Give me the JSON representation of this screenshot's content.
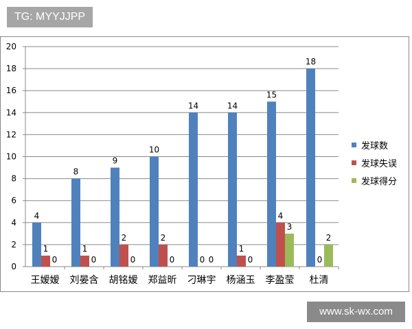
{
  "tag": "TG: MYYJJPP",
  "watermark": "www.sk-wx.com",
  "chart_data": {
    "type": "bar",
    "title": "",
    "categories": [
      "王嫒嫒",
      "刘晏含",
      "胡铭嫒",
      "郑益昕",
      "刁琳宇",
      "杨涵玉",
      "李盈莹",
      "杜清"
    ],
    "series": [
      {
        "name": "发球数",
        "color": "#4f81bd",
        "values": [
          4,
          8,
          9,
          10,
          14,
          14,
          15,
          18
        ]
      },
      {
        "name": "发球失误",
        "color": "#c0504d",
        "values": [
          1,
          1,
          2,
          2,
          0,
          1,
          4,
          0
        ]
      },
      {
        "name": "发球得分",
        "color": "#9bbb59",
        "values": [
          0,
          0,
          0,
          0,
          0,
          0,
          3,
          2
        ]
      }
    ],
    "ylim": [
      0,
      20
    ],
    "yticks": [
      0,
      2,
      4,
      6,
      8,
      10,
      12,
      14,
      16,
      18,
      20
    ],
    "grid": true,
    "legend": "right"
  }
}
